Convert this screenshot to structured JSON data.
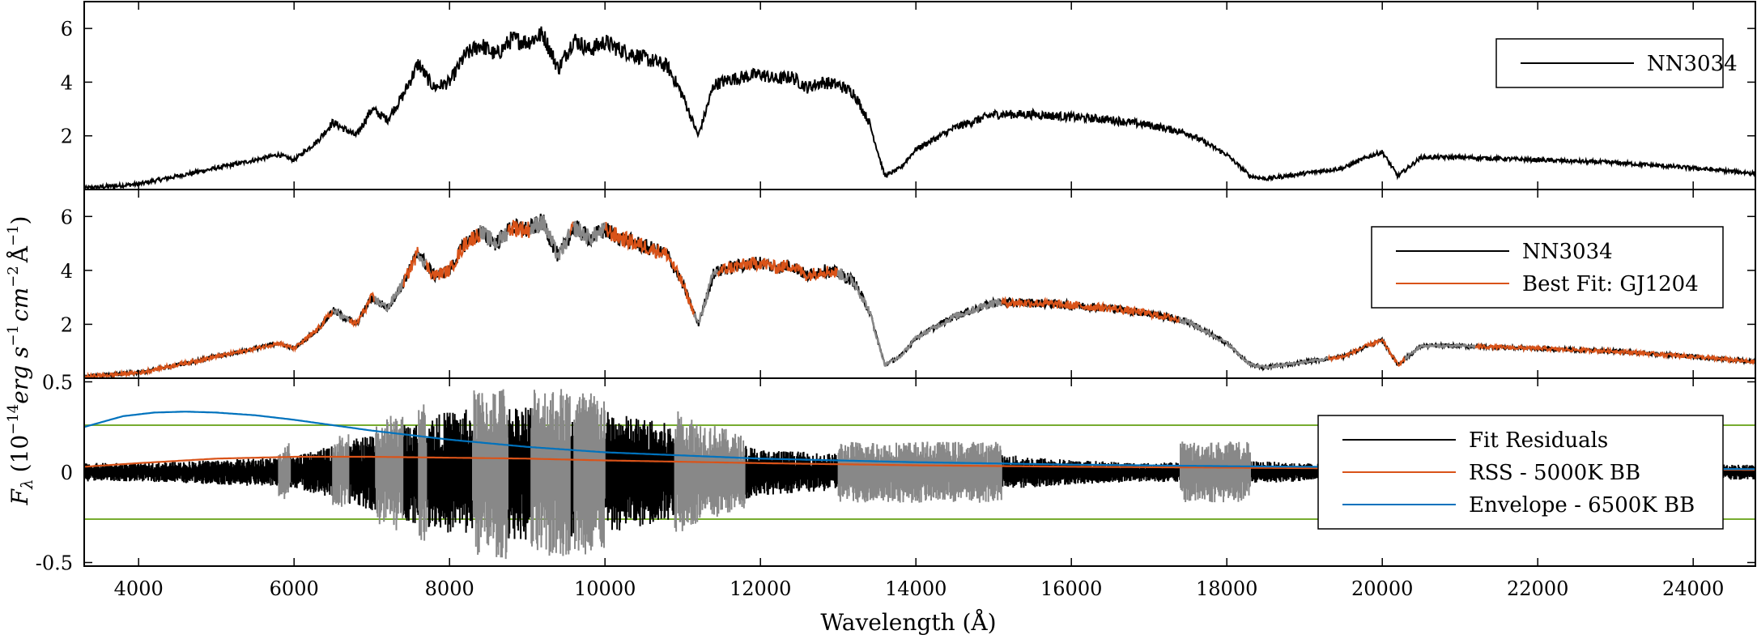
{
  "figure": {
    "ylabel_main": "F",
    "ylabel_sub": "λ",
    "ylabel_unit": "(10",
    "ylabel_exp": "−14",
    "ylabel_rest": "erg s",
    "ylabel_rest_exp": "−1",
    "ylabel_cm": "cm",
    "ylabel_cm_exp": "−2",
    "ylabel_ang": "Å",
    "ylabel_ang_exp": "−1",
    "ylabel_close": ")",
    "xlabel": "Wavelength (Å)"
  },
  "chart_data": [
    {
      "type": "line",
      "panel": "top",
      "xlim": [
        3300,
        24800
      ],
      "ylim": [
        0,
        7
      ],
      "yticks": [
        2,
        4,
        6
      ],
      "ytick_labels": [
        "2",
        "4",
        "6"
      ],
      "xticks": [
        4000,
        6000,
        8000,
        10000,
        12000,
        14000,
        16000,
        18000,
        20000,
        22000,
        24000
      ],
      "legend_position": "top-right",
      "series": [
        {
          "name": "NN3034",
          "color": "#000000",
          "x": [
            3300,
            4000,
            4500,
            5000,
            5500,
            5800,
            6000,
            6300,
            6500,
            6800,
            7000,
            7200,
            7400,
            7600,
            7700,
            7800,
            8000,
            8200,
            8400,
            8600,
            8800,
            9000,
            9200,
            9400,
            9600,
            9800,
            10000,
            10200,
            10400,
            10600,
            10800,
            11000,
            11200,
            11400,
            11600,
            11800,
            12000,
            12200,
            12400,
            12600,
            12800,
            13000,
            13200,
            13400,
            13600,
            13800,
            14000,
            14500,
            15000,
            15500,
            16000,
            16500,
            17000,
            17500,
            18000,
            18300,
            18500,
            19000,
            19500,
            19800,
            20000,
            20200,
            20500,
            21000,
            22000,
            23000,
            24000,
            24800
          ],
          "y": [
            0.05,
            0.2,
            0.5,
            0.8,
            1.1,
            1.3,
            1.1,
            1.8,
            2.5,
            2.0,
            3.0,
            2.6,
            3.5,
            4.7,
            4.2,
            3.8,
            4.0,
            5.0,
            5.4,
            5.0,
            5.6,
            5.5,
            5.8,
            4.5,
            5.6,
            5.2,
            5.5,
            5.2,
            5.0,
            4.8,
            4.6,
            3.5,
            2.0,
            3.9,
            4.1,
            4.2,
            4.3,
            4.1,
            4.2,
            3.8,
            4.0,
            3.9,
            3.6,
            2.5,
            0.5,
            0.8,
            1.5,
            2.3,
            2.8,
            2.8,
            2.7,
            2.6,
            2.4,
            2.1,
            1.3,
            0.5,
            0.4,
            0.6,
            0.8,
            1.2,
            1.4,
            0.5,
            1.2,
            1.2,
            1.1,
            1.0,
            0.8,
            0.6
          ]
        }
      ]
    },
    {
      "type": "line",
      "panel": "middle",
      "xlim": [
        3300,
        24800
      ],
      "ylim": [
        0,
        7
      ],
      "yticks": [
        2,
        4,
        6
      ],
      "ytick_labels": [
        "2",
        "4",
        "6"
      ],
      "xticks": [
        4000,
        6000,
        8000,
        10000,
        12000,
        14000,
        16000,
        18000,
        20000,
        22000,
        24000
      ],
      "legend_position": "top-right",
      "masked_ranges": [
        [
          6500,
          6700
        ],
        [
          7050,
          7400
        ],
        [
          7600,
          7700
        ],
        [
          8400,
          8750
        ],
        [
          9050,
          9550
        ],
        [
          9600,
          10000
        ],
        [
          11150,
          11450
        ],
        [
          13000,
          15100
        ],
        [
          17400,
          19300
        ],
        [
          20300,
          21200
        ]
      ],
      "masked_color": "#888888",
      "series": [
        {
          "name": "NN3034",
          "color": "#000000",
          "x": [
            3300,
            4000,
            4500,
            5000,
            5500,
            5800,
            6000,
            6300,
            6500,
            6800,
            7000,
            7200,
            7400,
            7600,
            7700,
            7800,
            8000,
            8200,
            8400,
            8600,
            8800,
            9000,
            9200,
            9400,
            9600,
            9800,
            10000,
            10200,
            10400,
            10600,
            10800,
            11000,
            11200,
            11400,
            11600,
            11800,
            12000,
            12200,
            12400,
            12600,
            12800,
            13000,
            13200,
            13400,
            13600,
            13800,
            14000,
            14500,
            15000,
            15500,
            16000,
            16500,
            17000,
            17500,
            18000,
            18300,
            18500,
            19000,
            19500,
            19800,
            20000,
            20200,
            20500,
            21000,
            22000,
            23000,
            24000,
            24800
          ],
          "y": [
            0.05,
            0.2,
            0.5,
            0.8,
            1.1,
            1.3,
            1.1,
            1.8,
            2.5,
            2.0,
            3.0,
            2.6,
            3.5,
            4.7,
            4.2,
            3.8,
            4.0,
            5.0,
            5.4,
            5.0,
            5.6,
            5.5,
            5.8,
            4.5,
            5.6,
            5.2,
            5.5,
            5.2,
            5.0,
            4.8,
            4.6,
            3.5,
            2.0,
            3.9,
            4.1,
            4.2,
            4.3,
            4.1,
            4.2,
            3.8,
            4.0,
            3.9,
            3.6,
            2.5,
            0.5,
            0.8,
            1.5,
            2.3,
            2.8,
            2.8,
            2.7,
            2.6,
            2.4,
            2.1,
            1.3,
            0.5,
            0.4,
            0.6,
            0.8,
            1.2,
            1.4,
            0.5,
            1.2,
            1.2,
            1.1,
            1.0,
            0.8,
            0.6
          ]
        },
        {
          "name": "Best Fit: GJ1204",
          "color": "#d95319",
          "x": [
            3300,
            4000,
            4500,
            5000,
            5500,
            5800,
            6000,
            6300,
            6500,
            6800,
            7000,
            7200,
            7400,
            7600,
            7700,
            7800,
            8000,
            8200,
            8400,
            8600,
            8800,
            9000,
            9200,
            9400,
            9600,
            9800,
            10000,
            10200,
            10400,
            10600,
            10800,
            11000,
            11200,
            11400,
            11600,
            11800,
            12000,
            12200,
            12400,
            12600,
            12800,
            13000,
            13200,
            13400,
            13600,
            13800,
            14000,
            14500,
            15000,
            15500,
            16000,
            16500,
            17000,
            17500,
            18000,
            18300,
            18500,
            19000,
            19500,
            19800,
            20000,
            20200,
            20500,
            21000,
            22000,
            23000,
            24000,
            24800
          ],
          "y": [
            0.05,
            0.2,
            0.5,
            0.8,
            1.1,
            1.3,
            1.1,
            1.8,
            2.5,
            2.0,
            3.0,
            2.6,
            3.5,
            4.7,
            4.2,
            3.8,
            4.0,
            5.0,
            5.4,
            5.0,
            5.6,
            5.5,
            5.8,
            4.5,
            5.6,
            5.2,
            5.5,
            5.2,
            5.0,
            4.8,
            4.6,
            3.5,
            2.0,
            3.9,
            4.1,
            4.2,
            4.3,
            4.1,
            4.2,
            3.8,
            4.0,
            3.9,
            3.6,
            2.5,
            0.5,
            0.8,
            1.5,
            2.3,
            2.8,
            2.8,
            2.7,
            2.6,
            2.4,
            2.1,
            1.3,
            0.5,
            0.4,
            0.6,
            0.8,
            1.2,
            1.4,
            0.5,
            1.2,
            1.2,
            1.1,
            1.0,
            0.8,
            0.6
          ]
        }
      ]
    },
    {
      "type": "line",
      "panel": "bottom",
      "xlim": [
        3300,
        24800
      ],
      "ylim": [
        -0.52,
        0.52
      ],
      "yticks": [
        -0.5,
        0,
        0.5
      ],
      "ytick_labels": [
        "-0.5",
        "0",
        "0.5"
      ],
      "xticks": [
        4000,
        6000,
        8000,
        10000,
        12000,
        14000,
        16000,
        18000,
        20000,
        22000,
        24000
      ],
      "xtick_labels": [
        "4000",
        "6000",
        "8000",
        "10000",
        "12000",
        "14000",
        "16000",
        "18000",
        "20000",
        "22000",
        "24000"
      ],
      "legend_position": "right",
      "threshold_lines": [
        0.26,
        -0.26
      ],
      "threshold_color": "#77ac30",
      "masked_ranges": [
        [
          5800,
          5950
        ],
        [
          6500,
          6700
        ],
        [
          7050,
          7400
        ],
        [
          7600,
          7700
        ],
        [
          8300,
          8750
        ],
        [
          9050,
          9550
        ],
        [
          9600,
          10000
        ],
        [
          10900,
          11800
        ],
        [
          13000,
          15100
        ],
        [
          17400,
          18300
        ]
      ],
      "masked_color": "#888888",
      "series": [
        {
          "name": "Fit Residuals",
          "color": "#000000",
          "x": [
            3300,
            4000,
            5000,
            6000,
            7000,
            8000,
            9000,
            10000,
            11000,
            12000,
            13000,
            14000,
            15000,
            16000,
            17000,
            18000,
            19000,
            20000,
            21000,
            22000,
            23000,
            24000,
            24800
          ],
          "amplitude": [
            0.06,
            0.06,
            0.08,
            0.1,
            0.25,
            0.4,
            0.45,
            0.4,
            0.3,
            0.15,
            0.12,
            0.15,
            0.12,
            0.08,
            0.06,
            0.08,
            0.06,
            0.05,
            0.05,
            0.04,
            0.04,
            0.05,
            0.05
          ]
        },
        {
          "name": "RSS - 5000K BB",
          "color": "#d95319",
          "x": [
            3300,
            4000,
            5000,
            6000,
            7000,
            8000,
            9000,
            10000,
            12000,
            14000,
            16000,
            18000,
            20000,
            22000,
            24000,
            24800
          ],
          "y": [
            0.03,
            0.05,
            0.075,
            0.085,
            0.085,
            0.08,
            0.075,
            0.065,
            0.05,
            0.038,
            0.03,
            0.025,
            0.02,
            0.017,
            0.014,
            0.013
          ]
        },
        {
          "name": "Envelope - 6500K BB",
          "color": "#0072bd",
          "x": [
            3300,
            3800,
            4200,
            4600,
            5000,
            5500,
            6000,
            7000,
            8000,
            9000,
            10000,
            12000,
            14000,
            16000,
            18000,
            20000,
            22000,
            24000,
            24800
          ],
          "y": [
            0.25,
            0.31,
            0.33,
            0.335,
            0.33,
            0.315,
            0.29,
            0.23,
            0.18,
            0.14,
            0.11,
            0.075,
            0.055,
            0.042,
            0.033,
            0.027,
            0.022,
            0.018,
            0.017
          ]
        }
      ]
    }
  ]
}
